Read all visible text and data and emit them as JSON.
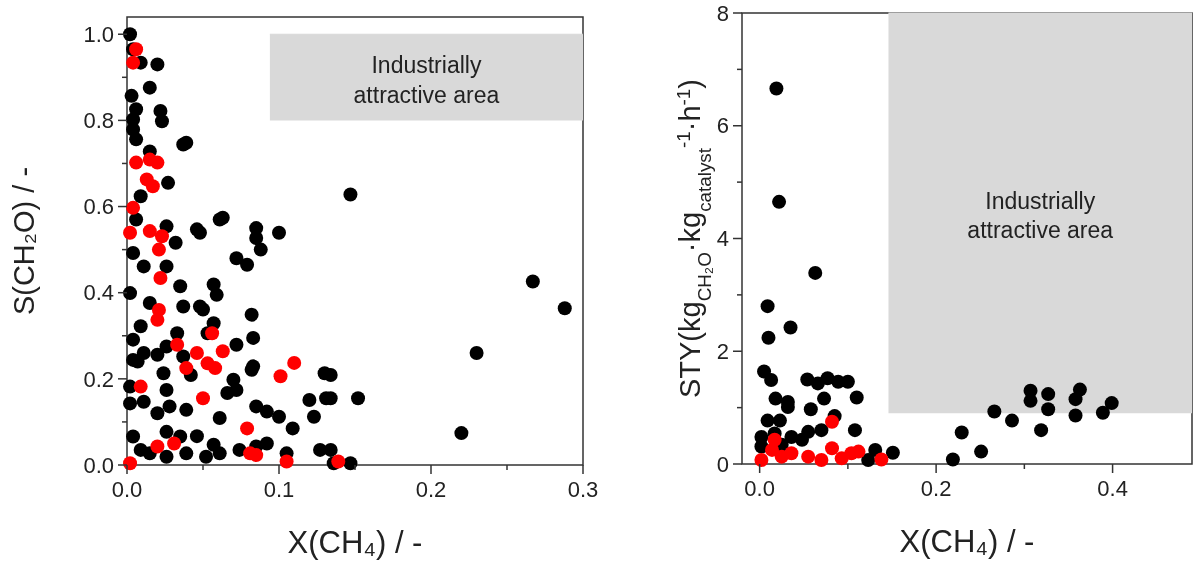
{
  "chart_data": [
    {
      "type": "scatter",
      "xlabel": "X(CH₄) / -",
      "ylabel": "S(CH₂O) / -",
      "xlim": [
        0,
        0.3
      ],
      "ylim": [
        0,
        1.04
      ],
      "xticks": [
        {
          "value": 0,
          "label": "0.0"
        },
        {
          "value": 0.05,
          "label": null
        },
        {
          "value": 0.1,
          "label": "0.1"
        },
        {
          "value": 0.15,
          "label": null
        },
        {
          "value": 0.2,
          "label": "0.2"
        },
        {
          "value": 0.25,
          "label": null
        },
        {
          "value": 0.3,
          "label": "0.3"
        }
      ],
      "yticks": [
        {
          "value": 0,
          "label": "0.0"
        },
        {
          "value": 0.1,
          "label": null
        },
        {
          "value": 0.2,
          "label": "0.2"
        },
        {
          "value": 0.3,
          "label": null
        },
        {
          "value": 0.4,
          "label": "0.4"
        },
        {
          "value": 0.5,
          "label": null
        },
        {
          "value": 0.6,
          "label": "0.6"
        },
        {
          "value": 0.7,
          "label": null
        },
        {
          "value": 0.8,
          "label": "0.8"
        },
        {
          "value": 0.9,
          "label": null
        },
        {
          "value": 1.0,
          "label": "1.0"
        }
      ],
      "annotations": [
        "Industrially attractive area"
      ],
      "series": [
        {
          "color": "#000000",
          "marker": "circle",
          "x": [
            0.002,
            0.004,
            0.009,
            0.02,
            0.015,
            0.003,
            0.006,
            0.004,
            0.022,
            0.023,
            0.004,
            0.006,
            0.037,
            0.039,
            0.015,
            0.027,
            0.009,
            0.006,
            0.026,
            0.032,
            0.046,
            0.048,
            0.061,
            0.063,
            0.085,
            0.085,
            0.088,
            0.072,
            0.079,
            0.1,
            0.004,
            0.011,
            0.026,
            0.035,
            0.057,
            0.059,
            0.002,
            0.015,
            0.037,
            0.048,
            0.05,
            0.082,
            0.083,
            0.009,
            0.004,
            0.026,
            0.033,
            0.072,
            0.011,
            0.004,
            0.02,
            0.037,
            0.057,
            0.053,
            0.083,
            0.082,
            0.07,
            0.024,
            0.042,
            0.072,
            0.066,
            0.002,
            0.011,
            0.026,
            0.028,
            0.039,
            0.02,
            0.061,
            0.085,
            0.092,
            0.1,
            0.12,
            0.123,
            0.131,
            0.13,
            0.109,
            0.105,
            0.127,
            0.092,
            0.085,
            0.074,
            0.057,
            0.046,
            0.035,
            0.026,
            0.004,
            0.009,
            0.015,
            0.026,
            0.039,
            0.052,
            0.061,
            0.136,
            0.147,
            0.002,
            0.007,
            0.147,
            0.267,
            0.288,
            0.23,
            0.152,
            0.22,
            0.134,
            0.134,
            0.134
          ],
          "values": [
            1.0,
            0.965,
            0.934,
            0.93,
            0.876,
            0.857,
            0.826,
            0.802,
            0.822,
            0.798,
            0.779,
            0.756,
            0.744,
            0.748,
            0.728,
            0.655,
            0.624,
            0.57,
            0.554,
            0.516,
            0.547,
            0.539,
            0.57,
            0.574,
            0.55,
            0.527,
            0.5,
            0.48,
            0.465,
            0.539,
            0.492,
            0.461,
            0.461,
            0.415,
            0.419,
            0.395,
            0.399,
            0.376,
            0.368,
            0.368,
            0.361,
            0.349,
            0.295,
            0.322,
            0.291,
            0.275,
            0.306,
            0.279,
            0.26,
            0.244,
            0.256,
            0.252,
            0.329,
            0.306,
            0.229,
            0.221,
            0.198,
            0.213,
            0.209,
            0.174,
            0.167,
            0.143,
            0.147,
            0.174,
            0.136,
            0.128,
            0.12,
            0.109,
            0.136,
            0.124,
            0.112,
            0.151,
            0.112,
            0.155,
            0.213,
            0.085,
            0.027,
            0.035,
            0.05,
            0.043,
            0.035,
            0.047,
            0.067,
            0.066,
            0.077,
            0.066,
            0.035,
            0.027,
            0.019,
            0.027,
            0.019,
            0.027,
            0.004,
            0.004,
            0.182,
            0.24,
            0.628,
            0.426,
            0.364,
            0.26,
            0.155,
            0.074,
            0.209,
            0.155,
            0.035
          ]
        },
        {
          "color": "#ff0000",
          "marker": "circle",
          "x": [
            0.006,
            0.004,
            0.006,
            0.015,
            0.02,
            0.013,
            0.017,
            0.004,
            0.002,
            0.015,
            0.023,
            0.021,
            0.022,
            0.021,
            0.02,
            0.033,
            0.039,
            0.046,
            0.053,
            0.058,
            0.063,
            0.056,
            0.05,
            0.009,
            0.02,
            0.031,
            0.079,
            0.081,
            0.085,
            0.101,
            0.11,
            0.105,
            0.139,
            0.002
          ],
          "values": [
            0.965,
            0.934,
            0.702,
            0.709,
            0.702,
            0.663,
            0.647,
            0.597,
            0.539,
            0.543,
            0.531,
            0.5,
            0.434,
            0.36,
            0.337,
            0.279,
            0.225,
            0.26,
            0.236,
            0.225,
            0.264,
            0.306,
            0.155,
            0.182,
            0.043,
            0.05,
            0.085,
            0.027,
            0.023,
            0.206,
            0.237,
            0.008,
            0.008,
            0.004
          ]
        },
        {
          "type": "line",
          "color": "#d9d9d9",
          "x": [
            0.094,
            0.3
          ],
          "values": [
            1.0,
            1.0
          ],
          "lower": [
            0.8,
            0.8
          ],
          "upper": [
            1.0,
            1.0
          ]
        }
      ]
    },
    {
      "type": "scatter",
      "xlabel": "X(CH₄) / -",
      "ylabel": "STY(kg$_{CH₂O}$·kg$_{catalyst}$$^{-1}$·h$^{-1}$)",
      "xlim": [
        -0.02,
        0.49
      ],
      "ylim": [
        0,
        8
      ],
      "xticks": [
        {
          "value": 0,
          "label": "0.0"
        },
        {
          "value": 0.1,
          "label": null
        },
        {
          "value": 0.2,
          "label": "0.2"
        },
        {
          "value": 0.3,
          "label": null
        },
        {
          "value": 0.4,
          "label": "0.4"
        }
      ],
      "yticks": [
        0,
        {
          "value": 1,
          "label": null
        },
        2,
        {
          "value": 3,
          "label": null
        },
        4,
        {
          "value": 5,
          "label": null
        },
        6,
        {
          "value": 7,
          "label": null
        },
        8
      ],
      "annotations": [
        "Industrially attractive area"
      ],
      "series": [
        {
          "color": "#000000",
          "marker": "circle",
          "x": [
            0.019,
            0.022,
            0.063,
            0.009,
            0.035,
            0.01,
            0.005,
            0.013,
            0.054,
            0.066,
            0.077,
            0.089,
            0.1,
            0.018,
            0.032,
            0.032,
            0.073,
            0.11,
            0.058,
            0.009,
            0.023,
            0.085,
            0.108,
            0.002,
            0.017,
            0.036,
            0.055,
            0.07,
            0.048,
            0.025,
            0.002,
            0.131,
            0.151,
            0.123,
            0.219,
            0.229,
            0.251,
            0.266,
            0.286,
            0.307,
            0.307,
            0.319,
            0.327,
            0.327,
            0.358,
            0.358,
            0.363,
            0.389,
            0.399
          ],
          "values": [
            6.66,
            4.65,
            3.39,
            2.8,
            2.42,
            2.24,
            1.64,
            1.49,
            1.5,
            1.43,
            1.52,
            1.46,
            1.46,
            1.16,
            1.1,
            1.01,
            1.16,
            1.18,
            0.97,
            0.77,
            0.77,
            0.85,
            0.6,
            0.48,
            0.54,
            0.48,
            0.57,
            0.6,
            0.43,
            0.34,
            0.31,
            0.25,
            0.2,
            0.07,
            0.08,
            0.56,
            0.22,
            0.93,
            0.77,
            1.3,
            1.12,
            0.6,
            1.24,
            0.97,
            0.86,
            1.15,
            1.32,
            0.91,
            1.08
          ]
        },
        {
          "color": "#ff0000",
          "marker": "circle",
          "x": [
            0.082,
            0.017,
            0.014,
            0.036,
            0.055,
            0.082,
            0.104,
            0.112,
            0.138,
            0.002,
            0.07,
            0.093,
            0.025
          ],
          "values": [
            0.75,
            0.43,
            0.25,
            0.19,
            0.13,
            0.28,
            0.19,
            0.22,
            0.08,
            0.07,
            0.07,
            0.1,
            0.13
          ]
        },
        {
          "type": "line",
          "color": "#d9d9d9",
          "x": [
            0.146,
            0.49
          ],
          "values": [
            8,
            8
          ],
          "lower": [
            0.9,
            0.9
          ],
          "upper": [
            8,
            8
          ]
        }
      ]
    }
  ]
}
